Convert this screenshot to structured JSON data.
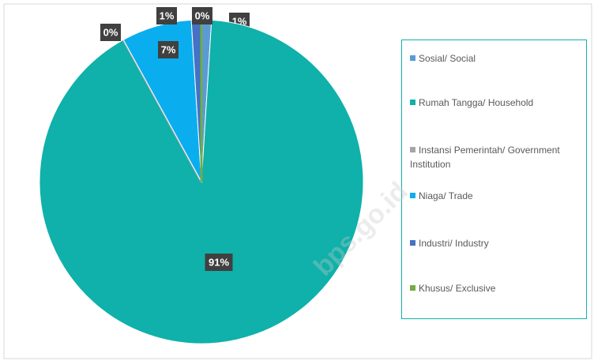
{
  "chart_data": {
    "type": "pie",
    "categories": [
      "Sosial/ Social",
      "Rumah Tangga/ Household",
      "Instansi Pemerintah/ Government Institution",
      "Niaga/ Trade",
      "Industri/ Industry",
      "Khusus/ Exclusive"
    ],
    "values": [
      1,
      91,
      0,
      7,
      1,
      0
    ],
    "value_labels": [
      "1%",
      "91%",
      "0%",
      "7%",
      "1%",
      "0%"
    ],
    "colors": [
      "#5b9bd5",
      "#0fb1aa",
      "#a5a5a5",
      "#0aaeef",
      "#4472c4",
      "#70ad47"
    ],
    "legend": "right",
    "watermark": "bps.go.id"
  }
}
